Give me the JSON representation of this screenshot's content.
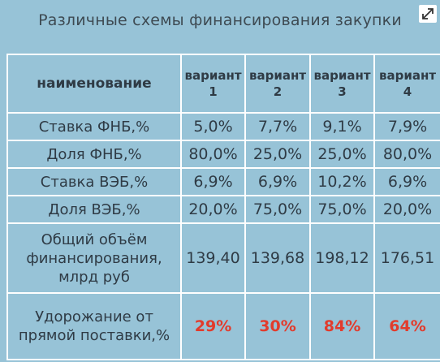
{
  "title": "Различные схемы финансирования закупки",
  "table": {
    "header": {
      "name": "наименование",
      "variants": [
        {
          "word": "вариант",
          "num": "1"
        },
        {
          "word": "вариант",
          "num": "2"
        },
        {
          "word": "вариант",
          "num": "3"
        },
        {
          "word": "вариант",
          "num": "4"
        }
      ]
    },
    "rows": [
      {
        "label": [
          "Ставка ФНБ,%"
        ],
        "values": [
          "5,0%",
          "7,7%",
          "9,1%",
          "7,9%"
        ]
      },
      {
        "label": [
          "Доля ФНБ,%"
        ],
        "values": [
          "80,0%",
          "25,0%",
          "25,0%",
          "80,0%"
        ]
      },
      {
        "label": [
          "Ставка ВЭБ,%"
        ],
        "values": [
          "6,9%",
          "6,9%",
          "10,2%",
          "6,9%"
        ]
      },
      {
        "label": [
          "Доля ВЭБ,%"
        ],
        "values": [
          "20,0%",
          "75,0%",
          "75,0%",
          "20,0%"
        ]
      },
      {
        "label": [
          "Общий объём",
          "финансирования,",
          "млрд руб"
        ],
        "values": [
          "139,40",
          "139,68",
          "198,12",
          "176,51"
        ]
      },
      {
        "label": [
          "Удорожание от",
          "прямой поставки,%"
        ],
        "values": [
          "29%",
          "30%",
          "84%",
          "64%"
        ]
      }
    ]
  },
  "colors": {
    "background": "#97c3d7",
    "highlight": "#e23b2c",
    "grid": "#ffffff",
    "text": "#2f3b45"
  },
  "icons": {
    "expand": "expand-arrows-icon"
  }
}
